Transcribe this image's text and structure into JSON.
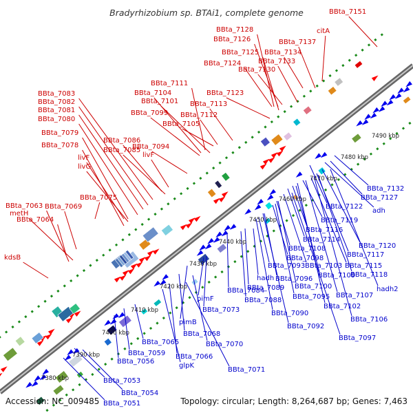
{
  "title": "Bradyrhizobium sp. BTAi1, complete genome",
  "footer": {
    "accession": "Accession: NC_009485",
    "stats": "Topology: circular; Length: 8,264,687 bp; Genes: 7,463"
  },
  "colors": {
    "top_strand_label": "#cc0000",
    "bottom_strand_label": "#0000cc",
    "forward_gene": "#ff0000",
    "reverse_gene": "#0000ee",
    "backbone": "#888888",
    "dotted_track": "#1a8a1a"
  },
  "kbp_ticks": [
    "7380 kbp",
    "7390 kbp",
    "7400 kbp",
    "7410 kbp",
    "7420 kbp",
    "7430 kbp",
    "7440 kbp",
    "7450 kbp",
    "7460 kbp",
    "7470 kbp",
    "7480 kbp",
    "7490 kbp"
  ],
  "top_labels": [
    "BBta_7151",
    "BBta_7128",
    "BBta_7126",
    "citA",
    "BBta_7137",
    "BBta_7125",
    "BBta_7134",
    "BBta_7133",
    "BBta_7124",
    "BBta_7130",
    "BBta_7111",
    "BBta_7123",
    "BBta_7104",
    "BBta_7083",
    "BBta_7101",
    "BBta_7113",
    "BBta_7082",
    "BBta_7099",
    "BBta_7112",
    "BBta_7081",
    "BBta_7105",
    "BBta_7080",
    "BBta_7079",
    "BBta_7086",
    "BBta_7078",
    "BBta_7085",
    "BBta_7094",
    "livF",
    "livF",
    "livG",
    "BBta_7075",
    "BBta_7063",
    "BBta_7069",
    "metH",
    "BBta_7064",
    "kdsB"
  ],
  "bottom_labels": [
    "BBta_7132",
    "BBta_7127",
    "adh",
    "BBta_7122",
    "BBta_7119",
    "BBta_7116",
    "BBta_7114",
    "BBta_7120",
    "BBta_7108",
    "BBta_7117",
    "BBta_7098",
    "BBta_7103",
    "BBta_7115",
    "BBta_7093",
    "BBta_7109",
    "BBta_7118",
    "hadh",
    "BBta_7096",
    "BBta_7100",
    "hadh2",
    "BBta_7084",
    "BBta_7089",
    "BBta_7095",
    "BBta_7107",
    "BBta_7088",
    "BBta_7102",
    "BBta_7090",
    "BBta_7106",
    "BBta_7092",
    "pimF",
    "BBta_7073",
    "BBta_7097",
    "pimB",
    "BBta_7068",
    "BBta_7065",
    "BBta_7070",
    "BBta_7059",
    "BBta_7066",
    "BBta_7056",
    "glpK",
    "BBta_7071",
    "BBta_7053",
    "BBta_7054",
    "BBta_7051"
  ]
}
